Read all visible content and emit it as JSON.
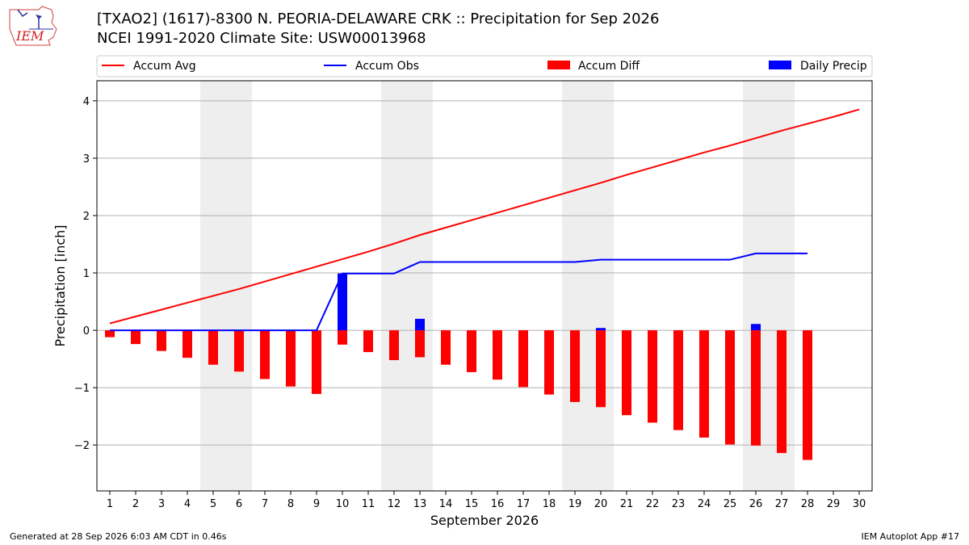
{
  "logo": {
    "text": "IEM"
  },
  "title_line1": "[TXAO2] (1617)-8300 N. PEORIA-DELAWARE CRK :: Precipitation for Sep 2026",
  "title_line2": "NCEI 1991-2020 Climate Site: USW00013968",
  "footer_left": "Generated at 28 Sep 2026 6:03 AM CDT in 0.46s",
  "footer_right": "IEM Autoplot App #17",
  "colors": {
    "avg": "#ff0000",
    "obs": "#0000ff",
    "diff": "#ff0000",
    "daily": "#0000ff",
    "weekend": "#eeeeee",
    "grid": "#b0b0b0"
  },
  "chart_data": {
    "type": "bar",
    "xlabel": "September 2026",
    "ylabel": "Precipitation [inch]",
    "xlim": [
      0.5,
      30.5
    ],
    "ylim": [
      -2.8,
      4.35
    ],
    "yticks": [
      -2,
      -1,
      0,
      1,
      2,
      3,
      4
    ],
    "grid": "horizontal",
    "legend_position": "top",
    "legend": [
      "Accum Avg",
      "Accum Obs",
      "Accum Diff",
      "Daily Precip"
    ],
    "weekend_days": [
      5,
      6,
      12,
      13,
      19,
      20,
      26,
      27
    ],
    "days": [
      1,
      2,
      3,
      4,
      5,
      6,
      7,
      8,
      9,
      10,
      11,
      12,
      13,
      14,
      15,
      16,
      17,
      18,
      19,
      20,
      21,
      22,
      23,
      24,
      25,
      26,
      27,
      28,
      29,
      30
    ],
    "accum_avg": [
      0.12,
      0.24,
      0.36,
      0.48,
      0.6,
      0.72,
      0.85,
      0.98,
      1.11,
      1.24,
      1.37,
      1.51,
      1.66,
      1.79,
      1.92,
      2.05,
      2.18,
      2.31,
      2.44,
      2.57,
      2.71,
      2.84,
      2.97,
      3.1,
      3.22,
      3.35,
      3.48,
      3.6,
      3.72,
      3.85
    ],
    "accum_obs_days": [
      1,
      2,
      3,
      4,
      5,
      6,
      7,
      8,
      9,
      10,
      11,
      12,
      13,
      14,
      15,
      16,
      17,
      18,
      19,
      20,
      21,
      22,
      23,
      24,
      25,
      26,
      27,
      28
    ],
    "accum_obs": [
      0,
      0,
      0,
      0,
      0,
      0,
      0,
      0,
      0,
      0.99,
      0.99,
      0.99,
      1.19,
      1.19,
      1.19,
      1.19,
      1.19,
      1.19,
      1.19,
      1.23,
      1.23,
      1.23,
      1.23,
      1.23,
      1.23,
      1.34,
      1.34,
      1.34
    ],
    "accum_diff": [
      -0.12,
      -0.24,
      -0.36,
      -0.48,
      -0.6,
      -0.72,
      -0.85,
      -0.98,
      -1.11,
      -0.25,
      -0.38,
      -0.52,
      -0.47,
      -0.6,
      -0.73,
      -0.86,
      -0.99,
      -1.12,
      -1.25,
      -1.34,
      -1.48,
      -1.61,
      -1.74,
      -1.87,
      -1.99,
      -2.01,
      -2.14,
      -2.26
    ],
    "daily_precip": [
      0,
      0,
      0,
      0,
      0,
      0,
      0,
      0,
      0,
      0.99,
      0,
      0,
      0.2,
      0,
      0,
      0,
      0,
      0,
      0,
      0.04,
      0,
      0,
      0,
      0,
      0,
      0.11,
      0,
      0
    ]
  }
}
